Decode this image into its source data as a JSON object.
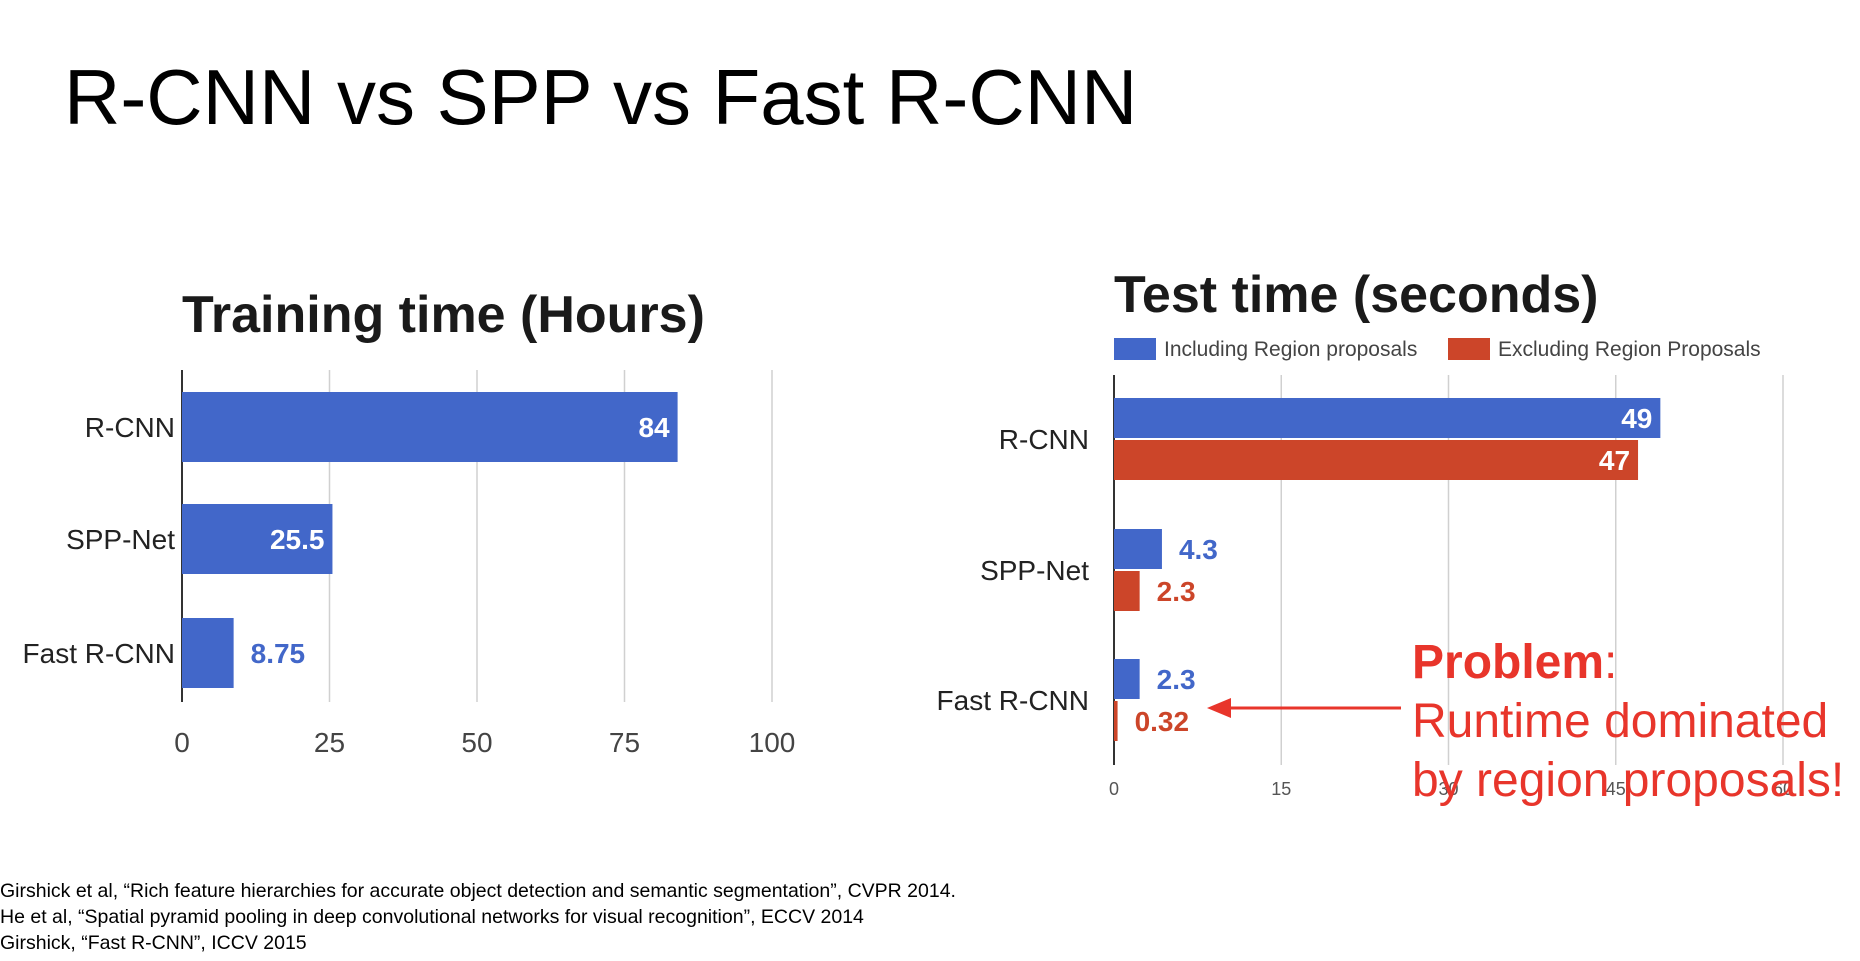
{
  "slide": {
    "title": "R-CNN vs SPP vs Fast R-CNN",
    "problem_label": "Problem",
    "problem_colon": ":",
    "problem_line1": "Runtime dominated",
    "problem_line2": "by region proposals!",
    "accent_color": "#e8352b"
  },
  "references": [
    "Girshick et al, “Rich feature hierarchies for accurate object detection and semantic segmentation”, CVPR 2014.",
    "He et al, “Spatial pyramid pooling in deep convolutional networks for visual recognition”, ECCV 2014",
    "Girshick, “Fast R-CNN”, ICCV 2015"
  ],
  "chart_data": [
    {
      "type": "bar",
      "orientation": "horizontal",
      "title": "Training time (Hours)",
      "categories": [
        "R-CNN",
        "SPP-Net",
        "Fast R-CNN"
      ],
      "values": [
        84,
        25.5,
        8.75
      ],
      "value_labels": [
        "84",
        "25.5",
        "8.75"
      ],
      "xlim": [
        0,
        100
      ],
      "xticks": [
        "0",
        "25",
        "50",
        "75",
        "100"
      ],
      "grid": true,
      "color": "#4267c9"
    },
    {
      "type": "bar",
      "orientation": "horizontal",
      "title": "Test time (seconds)",
      "categories": [
        "R-CNN",
        "SPP-Net",
        "Fast R-CNN"
      ],
      "series": [
        {
          "name": "Including Region proposals",
          "values": [
            49,
            4.3,
            2.3
          ],
          "value_labels": [
            "49",
            "4.3",
            "2.3"
          ],
          "color": "#4267c9"
        },
        {
          "name": "Excluding Region Proposals",
          "values": [
            47,
            2.3,
            0.32
          ],
          "value_labels": [
            "47",
            "2.3",
            "0.32"
          ],
          "color": "#cc4529"
        }
      ],
      "legend": "top",
      "xlim": [
        0,
        60
      ],
      "xticks": [
        "0",
        "15",
        "30",
        "45",
        "60"
      ],
      "grid": true
    }
  ]
}
